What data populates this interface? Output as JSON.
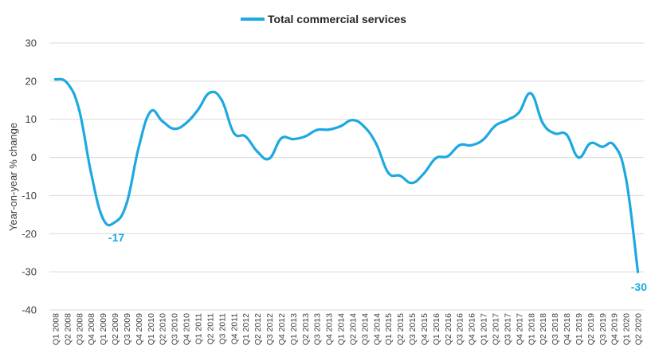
{
  "chart_data": {
    "type": "line",
    "legend_position": "top-center",
    "grid": "horizontal",
    "ylabel": "Year-on-year % change",
    "ylim": [
      -40,
      30
    ],
    "yticks": [
      30,
      20,
      10,
      0,
      -10,
      -20,
      -30,
      -40
    ],
    "categories": [
      "Q1 2008",
      "Q2 2008",
      "Q3 2008",
      "Q4 2008",
      "Q1 2009",
      "Q2 2009",
      "Q3 2009",
      "Q4 2009",
      "Q1 2010",
      "Q2 2010",
      "Q3 2010",
      "Q4 2010",
      "Q1 2011",
      "Q2 2011",
      "Q3 2011",
      "Q4 2011",
      "Q1 2012",
      "Q2 2012",
      "Q3 2012",
      "Q4 2012",
      "Q1 2013",
      "Q2 2013",
      "Q3 2013",
      "Q4 2013",
      "Q1 2014",
      "Q2 2014",
      "Q3 2014",
      "Q4 2014",
      "Q1 2015",
      "Q2 2015",
      "Q3 2015",
      "Q4 2015",
      "Q1 2016",
      "Q2 2016",
      "Q3 2016",
      "Q4 2016",
      "Q1 2017",
      "Q2 2017",
      "Q3 2017",
      "Q4 2017",
      "Q1 2018",
      "Q2 2018",
      "Q3 2018",
      "Q4 2018",
      "Q1 2019",
      "Q2 2019",
      "Q3 2019",
      "Q4 2019",
      "Q1 2020",
      "Q2 2020"
    ],
    "series": [
      {
        "name": "Total commercial services",
        "color": "#1DA9E0",
        "values": [
          20.5,
          19.5,
          12.5,
          -4,
          -16,
          -17,
          -12,
          2.5,
          12,
          9.5,
          7.5,
          9,
          12.5,
          17,
          15,
          6.5,
          5.5,
          1.5,
          -0.3,
          5,
          4.8,
          5.5,
          7.2,
          7.3,
          8.2,
          9.8,
          8,
          3.5,
          -4,
          -4.8,
          -6.7,
          -4.2,
          -0.2,
          0.3,
          3.2,
          3.2,
          4.7,
          8.3,
          9.8,
          11.8,
          16.8,
          9,
          6.3,
          6,
          0,
          3.7,
          2.8,
          3.2,
          -5.5,
          -30
        ]
      }
    ],
    "annotations": [
      {
        "label": "-17",
        "category": "Q2 2009",
        "value": -17
      },
      {
        "label": "-30",
        "category": "Q2 2020",
        "value": -30
      }
    ]
  }
}
